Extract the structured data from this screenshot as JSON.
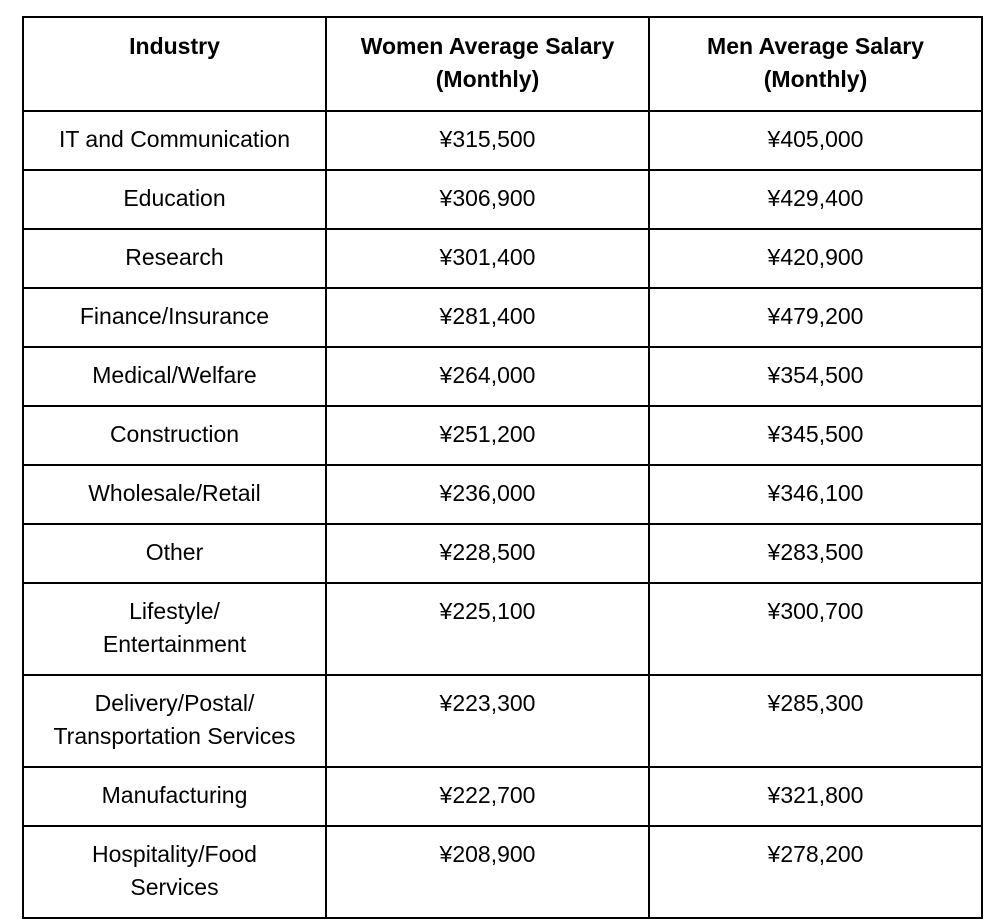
{
  "table": {
    "headers": {
      "industry": "Industry",
      "women_line1": "Women Average Salary",
      "women_line2": "(Monthly)",
      "men_line1": "Men Average Salary",
      "men_line2": "(Monthly)"
    },
    "rows": [
      {
        "industry_line1": "IT and Communication",
        "industry_line2": "",
        "women": "¥315,500",
        "men": "¥405,000"
      },
      {
        "industry_line1": "Education",
        "industry_line2": "",
        "women": "¥306,900",
        "men": "¥429,400"
      },
      {
        "industry_line1": "Research",
        "industry_line2": "",
        "women": "¥301,400",
        "men": "¥420,900"
      },
      {
        "industry_line1": "Finance/Insurance",
        "industry_line2": "",
        "women": "¥281,400",
        "men": "¥479,200"
      },
      {
        "industry_line1": "Medical/Welfare",
        "industry_line2": "",
        "women": "¥264,000",
        "men": "¥354,500"
      },
      {
        "industry_line1": "Construction",
        "industry_line2": "",
        "women": "¥251,200",
        "men": "¥345,500"
      },
      {
        "industry_line1": "Wholesale/Retail",
        "industry_line2": "",
        "women": "¥236,000",
        "men": "¥346,100"
      },
      {
        "industry_line1": "Other",
        "industry_line2": "",
        "women": "¥228,500",
        "men": "¥283,500"
      },
      {
        "industry_line1": "Lifestyle/",
        "industry_line2": "Entertainment",
        "women": "¥225,100",
        "men": "¥300,700"
      },
      {
        "industry_line1": "Delivery/Postal/",
        "industry_line2": "Transportation Services",
        "women": "¥223,300",
        "men": "¥285,300"
      },
      {
        "industry_line1": "Manufacturing",
        "industry_line2": "",
        "women": "¥222,700",
        "men": "¥321,800"
      },
      {
        "industry_line1": "Hospitality/Food",
        "industry_line2": "Services",
        "women": "¥208,900",
        "men": "¥278,200"
      }
    ]
  }
}
